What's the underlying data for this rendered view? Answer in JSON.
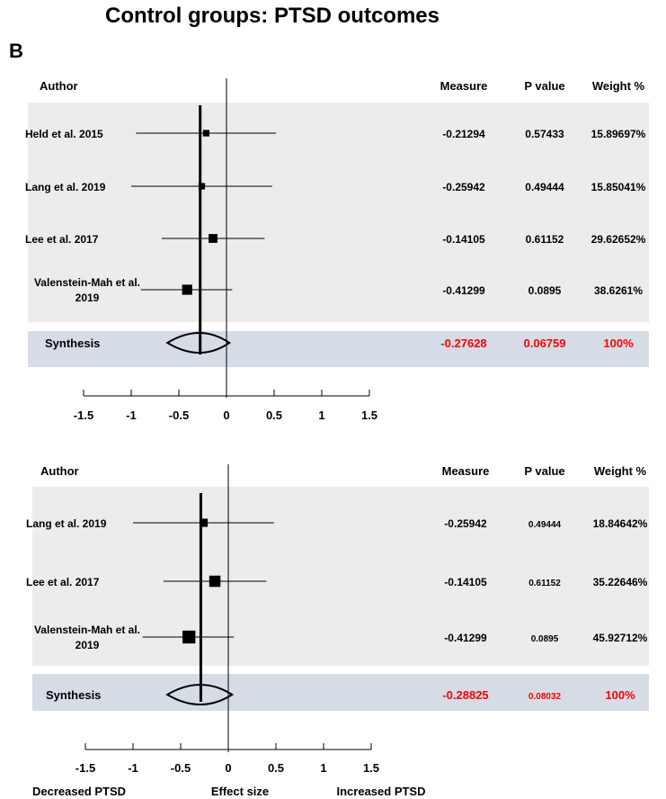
{
  "title": "Control groups: PTSD outcomes",
  "panel_label": "B",
  "colors": {
    "study_band": "#ececec",
    "synthesis_band": "#d6dce6",
    "synthesis_text": "#ff0000",
    "marker": "#000000"
  },
  "chart_data": [
    {
      "type": "forest",
      "columns": {
        "author": "Author",
        "measure": "Measure",
        "p_value": "P value",
        "weight": "Weight %"
      },
      "studies": [
        {
          "author": [
            "Held et al. 2015"
          ],
          "measure": -0.21294,
          "measure_text": "-0.21294",
          "p_text": "0.57433",
          "weight_text": "15.89697%",
          "weight": 15.89697,
          "ci": [
            -0.95,
            0.52
          ]
        },
        {
          "author": [
            "Lang et al. 2019"
          ],
          "measure": -0.25942,
          "measure_text": "-0.25942",
          "p_text": "0.49444",
          "weight_text": "15.85041%",
          "weight": 15.85041,
          "ci": [
            -1.0,
            0.48
          ]
        },
        {
          "author": [
            "Lee et al. 2017"
          ],
          "measure": -0.14105,
          "measure_text": "-0.14105",
          "p_text": "0.61152",
          "weight_text": "29.62652%",
          "weight": 29.62652,
          "ci": [
            -0.68,
            0.4
          ]
        },
        {
          "author": [
            "Valenstein-Mah et al.",
            "2019"
          ],
          "measure": -0.41299,
          "measure_text": "-0.41299",
          "p_text": "0.0895",
          "weight_text": "38.6261%",
          "weight": 38.6261,
          "ci": [
            -0.9,
            0.06
          ]
        }
      ],
      "synthesis": {
        "label": "Synthesis",
        "measure": -0.27628,
        "measure_text": "-0.27628",
        "p_text": "0.06759",
        "weight_text": "100%",
        "ci": [
          -0.62,
          0.03
        ]
      },
      "x_ticks": [
        -1.5,
        -1,
        -0.5,
        0,
        0.5,
        1,
        1.5
      ],
      "x_tick_labels": [
        "-1.5",
        "-1",
        "-0.5",
        "0",
        "0.5",
        "1",
        "1.5"
      ],
      "xlim": [
        -1.5,
        1.5
      ],
      "reference_line": 0,
      "pooled_line": -0.27628
    },
    {
      "type": "forest",
      "columns": {
        "author": "Author",
        "measure": "Measure",
        "p_value": "P value",
        "weight": "Weight %"
      },
      "studies": [
        {
          "author": [
            "Lang et al. 2019"
          ],
          "measure": -0.25942,
          "measure_text": "-0.25942",
          "p_text": "0.49444",
          "weight_text": "18.84642%",
          "weight": 18.84642,
          "ci": [
            -1.0,
            0.48
          ]
        },
        {
          "author": [
            "Lee et al. 2017"
          ],
          "measure": -0.14105,
          "measure_text": "-0.14105",
          "p_text": "0.61152",
          "weight_text": "35.22646%",
          "weight": 35.22646,
          "ci": [
            -0.68,
            0.4
          ]
        },
        {
          "author": [
            "Valenstein-Mah et al.",
            "2019"
          ],
          "measure": -0.41299,
          "measure_text": "-0.41299",
          "p_text": "0.0895",
          "weight_text": "45.92712%",
          "weight": 45.92712,
          "ci": [
            -0.9,
            0.06
          ]
        }
      ],
      "synthesis": {
        "label": "Synthesis",
        "measure": -0.28825,
        "measure_text": "-0.28825",
        "p_text": "0.08032",
        "weight_text": "100%",
        "ci": [
          -0.64,
          0.04
        ]
      },
      "x_ticks": [
        -1.5,
        -1,
        -0.5,
        0,
        0.5,
        1,
        1.5
      ],
      "x_tick_labels": [
        "-1.5",
        "-1",
        "-0.5",
        "0",
        "0.5",
        "1",
        "1.5"
      ],
      "xlim": [
        -1.5,
        1.5
      ],
      "reference_line": 0,
      "pooled_line": -0.28825,
      "axis_footer": {
        "left": "Decreased PTSD",
        "center": "Effect size",
        "right": "Increased PTSD"
      }
    }
  ]
}
